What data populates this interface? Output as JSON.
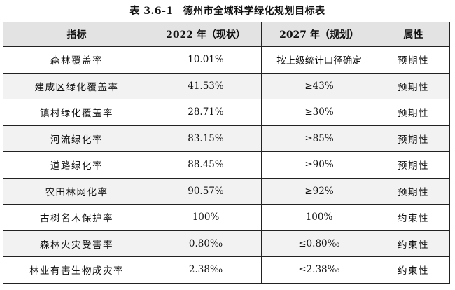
{
  "caption": {
    "number": "表 3.6-1",
    "title": "德州市全域科学绿化规划目标表"
  },
  "table": {
    "headers": [
      "指标",
      "2022 年（现状）",
      "2027 年（规划）",
      "属性"
    ],
    "rows": [
      {
        "indicator": "森林覆盖率",
        "current": "10.01%",
        "target": "按上级统计口径确定",
        "attribute": "预期性"
      },
      {
        "indicator": "建成区绿化覆盖率",
        "current": "41.53%",
        "target": "≥43%",
        "attribute": "预期性"
      },
      {
        "indicator": "镇村绿化覆盖率",
        "current": "28.71%",
        "target": "≥30%",
        "attribute": "预期性"
      },
      {
        "indicator": "河流绿化率",
        "current": "83.15%",
        "target": "≥85%",
        "attribute": "预期性"
      },
      {
        "indicator": "道路绿化率",
        "current": "88.45%",
        "target": "≥90%",
        "attribute": "预期性"
      },
      {
        "indicator": "农田林网化率",
        "current": "90.57%",
        "target": "≥92%",
        "attribute": "预期性"
      },
      {
        "indicator": "古树名木保护率",
        "current": "100%",
        "target": "100%",
        "attribute": "约束性"
      },
      {
        "indicator": "森林火灾受害率",
        "current": "0.80‰",
        "target": "≤0.80‰",
        "attribute": "约束性"
      },
      {
        "indicator": "林业有害生物成灾率",
        "current": "2.38‰",
        "target": "≤2.38‰",
        "attribute": "约束性"
      }
    ]
  }
}
